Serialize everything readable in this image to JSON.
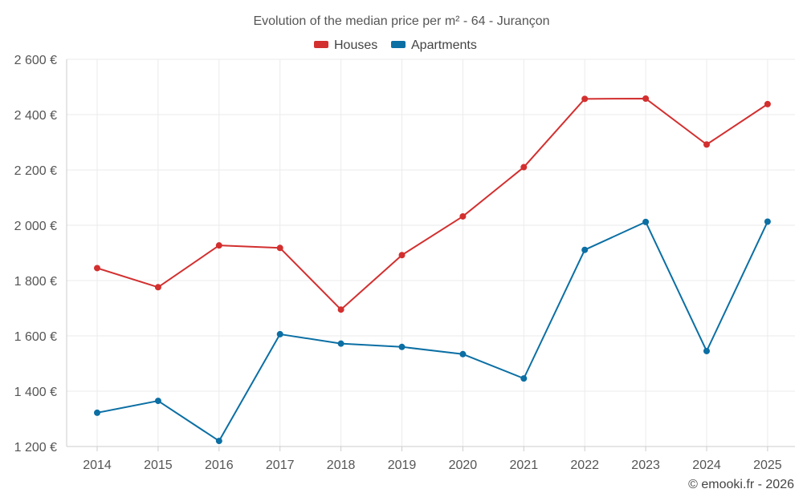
{
  "chart_data": {
    "type": "line",
    "title": "Evolution of the median price per m² - 64 - Jurançon",
    "categories": [
      "2014",
      "2015",
      "2016",
      "2017",
      "2018",
      "2019",
      "2020",
      "2021",
      "2022",
      "2023",
      "2024",
      "2025"
    ],
    "series": [
      {
        "name": "Houses",
        "color": "#d32f2f",
        "values": [
          1845,
          1776,
          1927,
          1918,
          1695,
          1892,
          2032,
          2210,
          2457,
          2458,
          2292,
          2438
        ]
      },
      {
        "name": "Apartments",
        "color": "#0b6fa4",
        "values": [
          1322,
          1365,
          1220,
          1606,
          1572,
          1560,
          1534,
          1446,
          1911,
          2012,
          1545,
          2013
        ]
      }
    ],
    "ylim": [
      1200,
      2600
    ],
    "yticks": [
      1200,
      1400,
      1600,
      1800,
      2000,
      2200,
      2400,
      2600
    ],
    "ytick_labels": [
      "1 200 €",
      "1 400 €",
      "1 600 €",
      "1 800 €",
      "2 000 €",
      "2 200 €",
      "2 400 €",
      "2 600 €"
    ],
    "legend_position": "top-center",
    "grid": true
  },
  "footer": "© emooki.fr - 2026"
}
